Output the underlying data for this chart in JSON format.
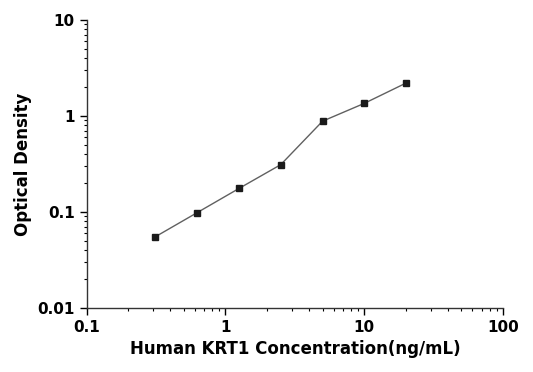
{
  "x": [
    0.313,
    0.625,
    1.25,
    2.5,
    5.0,
    10.0,
    20.0
  ],
  "y": [
    0.055,
    0.098,
    0.175,
    0.31,
    0.88,
    1.35,
    2.2
  ],
  "xlabel": "Human KRT1 Concentration(ng/mL)",
  "ylabel": "Optical Density",
  "xlim": [
    0.1,
    100
  ],
  "ylim": [
    0.01,
    10
  ],
  "xticks": [
    0.1,
    1,
    10,
    100
  ],
  "yticks": [
    0.01,
    0.1,
    1,
    10
  ],
  "line_color": "#606060",
  "marker_color": "#1a1a1a",
  "marker": "s",
  "marker_size": 5,
  "line_width": 1.0,
  "xlabel_fontsize": 12,
  "ylabel_fontsize": 12,
  "tick_fontsize": 11,
  "background_color": "#ffffff",
  "figure_facecolor": "#ffffff"
}
